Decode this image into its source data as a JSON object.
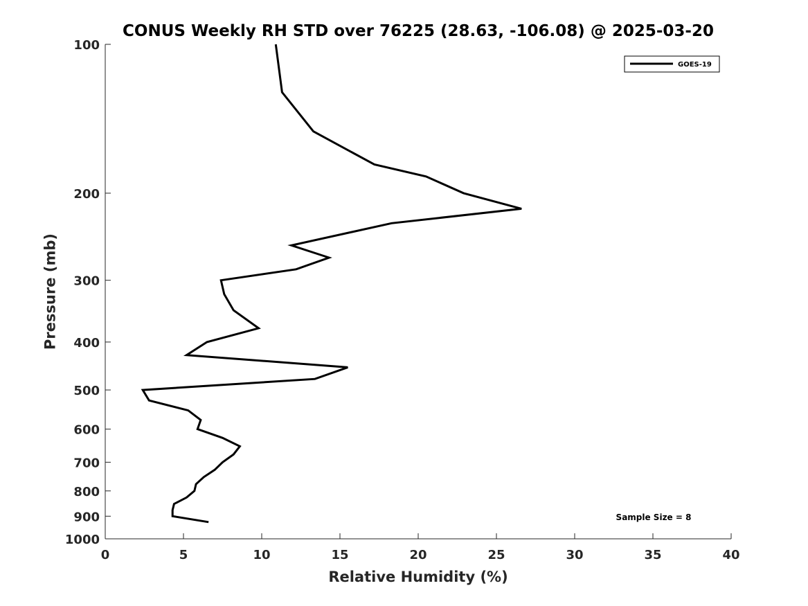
{
  "chart_data": {
    "type": "line",
    "title": "CONUS Weekly RH STD over 76225 (28.63, -106.08) @ 2025-03-20",
    "xlabel": "Relative Humidity (%)",
    "ylabel": "Pressure (mb)",
    "xlim": [
      0,
      40
    ],
    "ylim": [
      100,
      1000
    ],
    "y_scale": "log",
    "y_reversed": true,
    "x_ticks": [
      0,
      5,
      10,
      15,
      20,
      25,
      30,
      35,
      40
    ],
    "y_ticks": [
      100,
      200,
      300,
      400,
      500,
      600,
      700,
      800,
      900,
      1000
    ],
    "grid": false,
    "legend_position": "top-right",
    "series": [
      {
        "name": "GOES-19",
        "color": "#000000",
        "points": [
          {
            "x": 10.9,
            "y": 100
          },
          {
            "x": 11.3,
            "y": 125
          },
          {
            "x": 13.3,
            "y": 150
          },
          {
            "x": 17.2,
            "y": 175
          },
          {
            "x": 20.5,
            "y": 185
          },
          {
            "x": 22.9,
            "y": 200
          },
          {
            "x": 26.6,
            "y": 215
          },
          {
            "x": 18.3,
            "y": 230
          },
          {
            "x": 11.9,
            "y": 255
          },
          {
            "x": 14.3,
            "y": 270
          },
          {
            "x": 12.2,
            "y": 285
          },
          {
            "x": 7.4,
            "y": 300
          },
          {
            "x": 7.6,
            "y": 320
          },
          {
            "x": 8.2,
            "y": 345
          },
          {
            "x": 9.8,
            "y": 375
          },
          {
            "x": 6.5,
            "y": 400
          },
          {
            "x": 5.2,
            "y": 425
          },
          {
            "x": 15.5,
            "y": 450
          },
          {
            "x": 13.4,
            "y": 475
          },
          {
            "x": 2.4,
            "y": 500
          },
          {
            "x": 2.8,
            "y": 525
          },
          {
            "x": 5.3,
            "y": 550
          },
          {
            "x": 6.1,
            "y": 575
          },
          {
            "x": 5.9,
            "y": 600
          },
          {
            "x": 7.5,
            "y": 625
          },
          {
            "x": 8.6,
            "y": 650
          },
          {
            "x": 8.2,
            "y": 675
          },
          {
            "x": 7.5,
            "y": 700
          },
          {
            "x": 7.0,
            "y": 725
          },
          {
            "x": 6.3,
            "y": 750
          },
          {
            "x": 5.8,
            "y": 775
          },
          {
            "x": 5.7,
            "y": 800
          },
          {
            "x": 5.2,
            "y": 825
          },
          {
            "x": 4.4,
            "y": 850
          },
          {
            "x": 4.3,
            "y": 875
          },
          {
            "x": 4.3,
            "y": 900
          },
          {
            "x": 6.6,
            "y": 925
          }
        ]
      }
    ],
    "annotation": "Sample Size = 8"
  }
}
